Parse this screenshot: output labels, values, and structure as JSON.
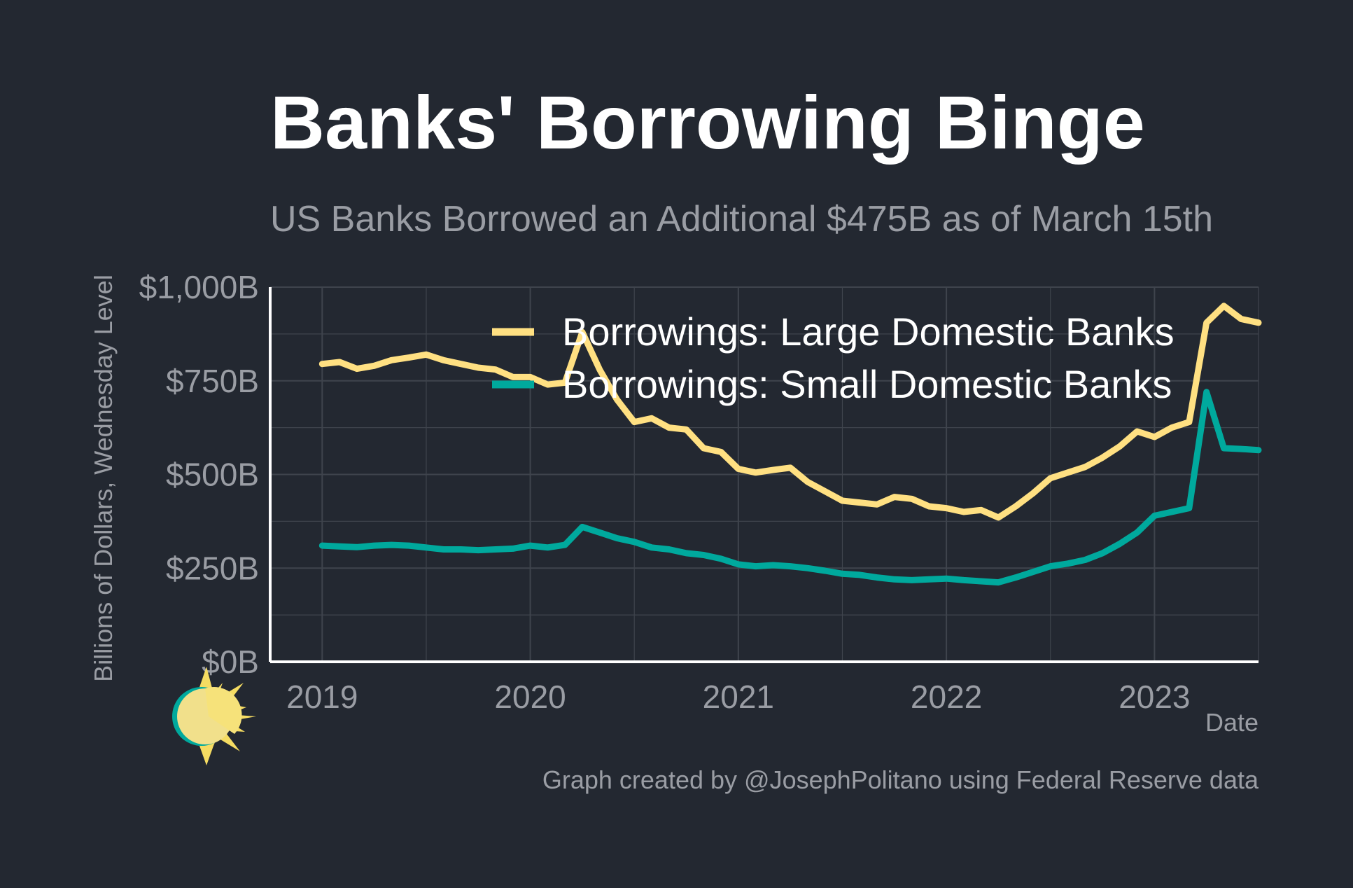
{
  "colors": {
    "background": "#232831",
    "grid": "#3f444d",
    "axis": "#ffffff",
    "muted_text": "#9a9da4",
    "large_banks": "#ffe082",
    "small_banks": "#00a99d"
  },
  "logo": {
    "icon": "sun-icon"
  },
  "chart_data": {
    "type": "line",
    "title": "Banks' Borrowing Binge",
    "subtitle": "US Banks Borrowed an Additional $475B as of March 15th",
    "xlabel": "Date",
    "ylabel": "Billions of Dollars, Wednesday Level",
    "caption": "Graph created by @JosephPolitano using Federal Reserve data",
    "x_tick_labels": [
      "2019",
      "2020",
      "2021",
      "2022",
      "2023"
    ],
    "y_tick_labels": [
      "$0B",
      "$250B",
      "$500B",
      "$750B",
      "$1,000B"
    ],
    "xlim": [
      "2018-10",
      "2023-07"
    ],
    "ylim": [
      0,
      1000
    ],
    "grid": true,
    "legend_position": "top-right",
    "series": [
      {
        "name": "Borrowings: Large Domestic Banks",
        "points": [
          [
            "2019-01",
            795
          ],
          [
            "2019-02",
            800
          ],
          [
            "2019-03",
            782
          ],
          [
            "2019-04",
            790
          ],
          [
            "2019-05",
            805
          ],
          [
            "2019-06",
            812
          ],
          [
            "2019-07",
            820
          ],
          [
            "2019-08",
            805
          ],
          [
            "2019-09",
            795
          ],
          [
            "2019-10",
            785
          ],
          [
            "2019-11",
            780
          ],
          [
            "2019-12",
            760
          ],
          [
            "2020-01",
            760
          ],
          [
            "2020-02",
            740
          ],
          [
            "2020-03",
            745
          ],
          [
            "2020-04",
            880
          ],
          [
            "2020-05",
            780
          ],
          [
            "2020-06",
            700
          ],
          [
            "2020-07",
            640
          ],
          [
            "2020-08",
            650
          ],
          [
            "2020-09",
            625
          ],
          [
            "2020-10",
            620
          ],
          [
            "2020-11",
            570
          ],
          [
            "2020-12",
            560
          ],
          [
            "2021-01",
            515
          ],
          [
            "2021-02",
            505
          ],
          [
            "2021-03",
            512
          ],
          [
            "2021-04",
            518
          ],
          [
            "2021-05",
            480
          ],
          [
            "2021-06",
            455
          ],
          [
            "2021-07",
            430
          ],
          [
            "2021-08",
            425
          ],
          [
            "2021-09",
            420
          ],
          [
            "2021-10",
            440
          ],
          [
            "2021-11",
            435
          ],
          [
            "2021-12",
            415
          ],
          [
            "2022-01",
            410
          ],
          [
            "2022-02",
            400
          ],
          [
            "2022-03",
            405
          ],
          [
            "2022-04",
            385
          ],
          [
            "2022-05",
            415
          ],
          [
            "2022-06",
            450
          ],
          [
            "2022-07",
            490
          ],
          [
            "2022-08",
            505
          ],
          [
            "2022-09",
            520
          ],
          [
            "2022-10",
            545
          ],
          [
            "2022-11",
            575
          ],
          [
            "2022-12",
            615
          ],
          [
            "2023-01",
            600
          ],
          [
            "2023-02",
            625
          ],
          [
            "2023-03",
            640
          ],
          [
            "2023-04",
            905
          ],
          [
            "2023-05",
            950
          ],
          [
            "2023-06",
            915
          ],
          [
            "2023-07",
            905
          ]
        ]
      },
      {
        "name": "Borrowings: Small Domestic Banks",
        "points": [
          [
            "2019-01",
            310
          ],
          [
            "2019-02",
            308
          ],
          [
            "2019-03",
            306
          ],
          [
            "2019-04",
            310
          ],
          [
            "2019-05",
            312
          ],
          [
            "2019-06",
            310
          ],
          [
            "2019-07",
            305
          ],
          [
            "2019-08",
            300
          ],
          [
            "2019-09",
            300
          ],
          [
            "2019-10",
            298
          ],
          [
            "2019-11",
            300
          ],
          [
            "2019-12",
            302
          ],
          [
            "2020-01",
            310
          ],
          [
            "2020-02",
            305
          ],
          [
            "2020-03",
            312
          ],
          [
            "2020-04",
            360
          ],
          [
            "2020-05",
            345
          ],
          [
            "2020-06",
            330
          ],
          [
            "2020-07",
            320
          ],
          [
            "2020-08",
            305
          ],
          [
            "2020-09",
            300
          ],
          [
            "2020-10",
            290
          ],
          [
            "2020-11",
            285
          ],
          [
            "2020-12",
            275
          ],
          [
            "2021-01",
            260
          ],
          [
            "2021-02",
            255
          ],
          [
            "2021-03",
            258
          ],
          [
            "2021-04",
            255
          ],
          [
            "2021-05",
            250
          ],
          [
            "2021-06",
            243
          ],
          [
            "2021-07",
            235
          ],
          [
            "2021-08",
            232
          ],
          [
            "2021-09",
            225
          ],
          [
            "2021-10",
            220
          ],
          [
            "2021-11",
            218
          ],
          [
            "2021-12",
            220
          ],
          [
            "2022-01",
            222
          ],
          [
            "2022-02",
            218
          ],
          [
            "2022-03",
            215
          ],
          [
            "2022-04",
            212
          ],
          [
            "2022-05",
            225
          ],
          [
            "2022-06",
            240
          ],
          [
            "2022-07",
            255
          ],
          [
            "2022-08",
            262
          ],
          [
            "2022-09",
            272
          ],
          [
            "2022-10",
            290
          ],
          [
            "2022-11",
            315
          ],
          [
            "2022-12",
            345
          ],
          [
            "2023-01",
            390
          ],
          [
            "2023-02",
            400
          ],
          [
            "2023-03",
            410
          ],
          [
            "2023-04",
            720
          ],
          [
            "2023-05",
            570
          ],
          [
            "2023-06",
            568
          ],
          [
            "2023-07",
            565
          ]
        ]
      }
    ]
  }
}
